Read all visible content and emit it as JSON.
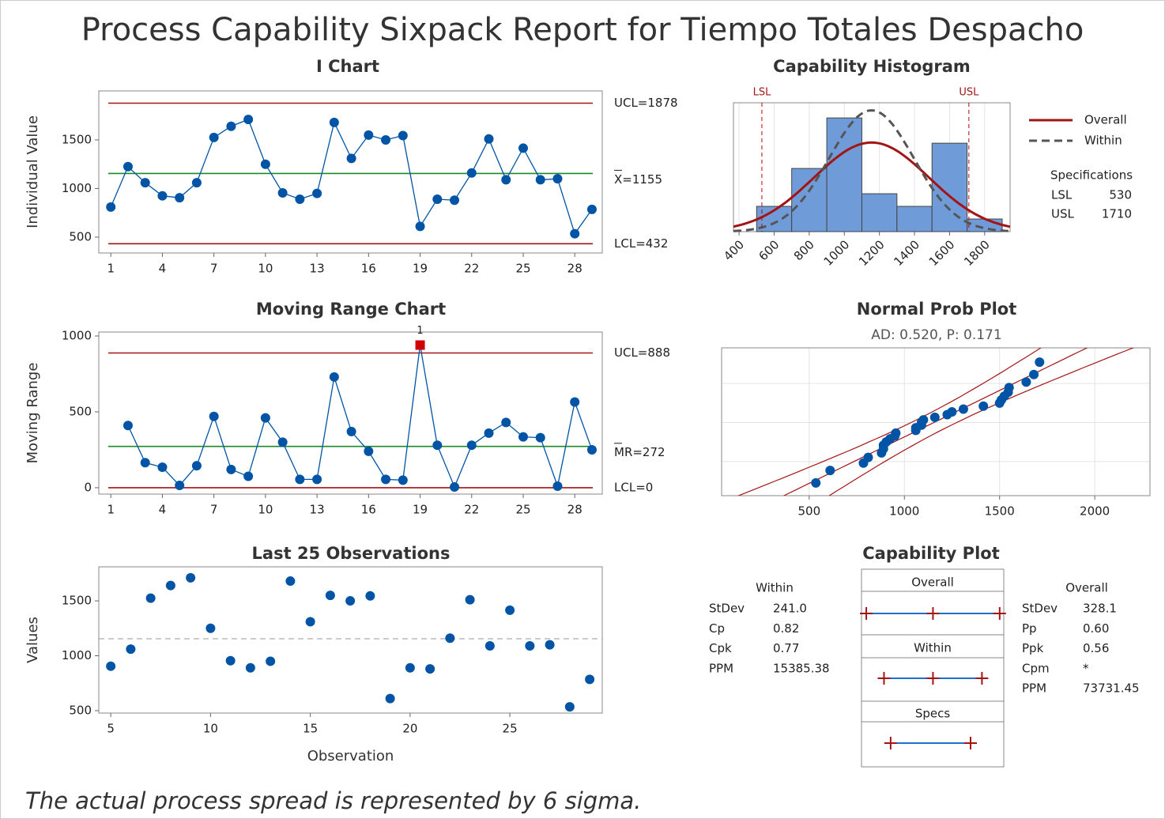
{
  "title": "Process Capability Sixpack Report for Tiempo Totales Despacho",
  "footer": "The actual process spread is represented by 6 sigma.",
  "chart_data": [
    {
      "type": "line",
      "title": "I Chart",
      "ylabel": "Individual Value",
      "color": "#0054a6",
      "x": [
        1,
        2,
        3,
        4,
        5,
        6,
        7,
        8,
        9,
        10,
        11,
        12,
        13,
        14,
        15,
        16,
        17,
        18,
        19,
        20,
        21,
        22,
        23,
        24,
        25,
        26,
        27,
        28,
        29
      ],
      "values": [
        810,
        1225,
        1060,
        925,
        905,
        1060,
        1525,
        1640,
        1710,
        1250,
        955,
        890,
        950,
        1680,
        1310,
        1550,
        1500,
        1545,
        610,
        890,
        880,
        1160,
        1510,
        1090,
        1415,
        1090,
        1100,
        535,
        785
      ],
      "xlim": [
        0.3,
        29.6
      ],
      "xticks": [
        1,
        4,
        7,
        10,
        13,
        16,
        19,
        22,
        25,
        28
      ],
      "ylim": [
        337,
        2004
      ],
      "yticks": [
        500,
        1000,
        1500
      ],
      "limits": [
        {
          "value": 1878,
          "label": "UCL=1878",
          "color": "#a31515"
        },
        {
          "value": 1155,
          "label": "X=1155",
          "color": "#1a8a2a",
          "bar": true
        },
        {
          "value": 432,
          "label": "LCL=432",
          "color": "#a31515"
        }
      ]
    },
    {
      "type": "line",
      "title": "Moving Range Chart",
      "ylabel": "Moving Range",
      "color": "#0054a6",
      "flag_color": "#d00000",
      "x": [
        2,
        3,
        4,
        5,
        6,
        7,
        8,
        9,
        10,
        11,
        12,
        13,
        14,
        15,
        16,
        17,
        18,
        19,
        20,
        21,
        22,
        23,
        24,
        25,
        26,
        27,
        28,
        29
      ],
      "values": [
        410,
        165,
        135,
        15,
        145,
        470,
        120,
        75,
        460,
        300,
        55,
        55,
        730,
        370,
        240,
        55,
        50,
        940,
        280,
        5,
        280,
        360,
        430,
        335,
        330,
        10,
        565,
        250
      ],
      "point_labels": [
        null,
        null,
        null,
        null,
        null,
        null,
        null,
        null,
        null,
        null,
        null,
        null,
        null,
        null,
        null,
        null,
        null,
        "1",
        null,
        null,
        null,
        null,
        null,
        null,
        null,
        null,
        null,
        null
      ],
      "xlim": [
        0.3,
        29.6
      ],
      "xticks": [
        1,
        4,
        7,
        10,
        13,
        16,
        19,
        22,
        25,
        28
      ],
      "ylim": [
        -42,
        1026
      ],
      "yticks": [
        0,
        500,
        1000
      ],
      "limits": [
        {
          "value": 888,
          "label": "UCL=888",
          "color": "#a31515"
        },
        {
          "value": 272,
          "label": "MR=272",
          "color": "#1a8a2a",
          "bar": true
        },
        {
          "value": 0,
          "label": "LCL=0",
          "color": "#a31515"
        }
      ]
    },
    {
      "type": "scatter",
      "title": "Last 25 Observations",
      "xlabel": "Observation",
      "ylabel": "Values",
      "color": "#0054a6",
      "x": [
        5,
        6,
        7,
        8,
        9,
        10,
        11,
        12,
        13,
        14,
        15,
        16,
        17,
        18,
        19,
        20,
        21,
        22,
        23,
        24,
        25,
        26,
        27,
        28,
        29
      ],
      "values": [
        905,
        1060,
        1525,
        1640,
        1710,
        1250,
        955,
        890,
        950,
        1680,
        1310,
        1550,
        1500,
        1545,
        610,
        890,
        880,
        1160,
        1510,
        1090,
        1415,
        1090,
        1100,
        535,
        785
      ],
      "center_line": 1155,
      "xlim": [
        4.4,
        29.63
      ],
      "xticks": [
        5,
        10,
        15,
        20,
        25
      ],
      "ylim": [
        478,
        1810
      ],
      "yticks": [
        500,
        1000,
        1500
      ]
    },
    {
      "type": "histogram",
      "title": "Capability Histogram",
      "color": "#6f9bd8",
      "bins": [
        500,
        700,
        900,
        1100,
        1300,
        1500,
        1700,
        1900
      ],
      "counts": [
        2,
        5,
        9,
        3,
        2,
        7,
        1
      ],
      "xlim": [
        368,
        1945
      ],
      "xticks": [
        400,
        600,
        800,
        1000,
        1200,
        1400,
        1600,
        1800
      ],
      "ylim": [
        0,
        10.2
      ],
      "spec_lines": [
        {
          "value": 530,
          "label": "LSL"
        },
        {
          "value": 1710,
          "label": "USL"
        }
      ],
      "series": [
        {
          "name": "Overall",
          "color": "#a31515",
          "mean": 1155,
          "stdev": 328.1,
          "dashed": false
        },
        {
          "name": "Within",
          "color": "#555555",
          "mean": 1155,
          "stdev": 241.0,
          "dashed": true
        }
      ],
      "specifications": {
        "title": "Specifications",
        "rows": [
          [
            "LSL",
            "530"
          ],
          [
            "USL",
            "1710"
          ]
        ]
      }
    },
    {
      "type": "probability",
      "title": "Normal Prob Plot",
      "subtitle": "AD: 0.520, P: 0.171",
      "color": "#0054a6",
      "line_color": "#a31515",
      "mean": 1155,
      "stdev": 328.1,
      "xlim": [
        40,
        2290
      ],
      "xticks": [
        500,
        1000,
        1500,
        2000
      ],
      "ylim": [
        -2.4,
        2.45
      ]
    },
    {
      "type": "capability",
      "title": "Capability Plot",
      "line_color": "#1f6fd0",
      "cross_color": "#a31515",
      "xlim": [
        100,
        2200
      ],
      "panels": [
        {
          "label": "Overall",
          "values": [
            170.7,
            1155,
            2139.3
          ]
        },
        {
          "label": "Within",
          "values": [
            432,
            1155,
            1878
          ]
        },
        {
          "label": "Specs",
          "values": [
            530,
            1710
          ]
        }
      ],
      "within_stats": {
        "title": "Within",
        "rows": [
          [
            "StDev",
            "241.0"
          ],
          [
            "Cp",
            "0.82"
          ],
          [
            "Cpk",
            "0.77"
          ],
          [
            "PPM",
            "15385.38"
          ]
        ]
      },
      "overall_stats": {
        "title": "Overall",
        "rows": [
          [
            "StDev",
            "328.1"
          ],
          [
            "Pp",
            "0.60"
          ],
          [
            "Ppk",
            "0.56"
          ],
          [
            "Cpm",
            "*"
          ],
          [
            "PPM",
            "73731.45"
          ]
        ]
      }
    }
  ]
}
